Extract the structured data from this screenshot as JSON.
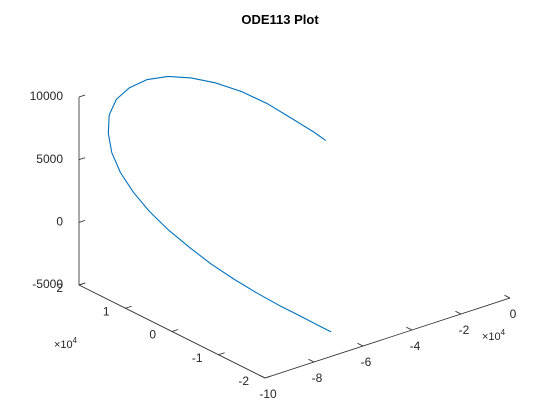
{
  "chart_data": {
    "type": "line",
    "projection": "3d",
    "title": "ODE113 Plot",
    "xlabel": "",
    "ylabel": "",
    "zlabel": "",
    "grid": false,
    "legend": "none",
    "series_color": "#0072BD",
    "axis_color": "#262626",
    "x_axis": {
      "ticks": [
        -10,
        -8,
        -6,
        -4,
        -2,
        0
      ],
      "tick_labels": [
        "-10",
        "-8",
        "-6",
        "-4",
        "-2",
        "0"
      ],
      "exponent_base": "×10",
      "exponent_power": "4",
      "xlim": [
        -10,
        0
      ]
    },
    "y_axis": {
      "ticks": [
        -2,
        -1,
        0,
        1,
        2
      ],
      "tick_labels": [
        "-2",
        "-1",
        "0",
        "1",
        "2"
      ],
      "exponent_base": "×10",
      "exponent_power": "4",
      "ylim": [
        -2,
        2
      ]
    },
    "z_axis": {
      "ticks": [
        -5000,
        0,
        5000,
        10000
      ],
      "tick_labels": [
        "-5000",
        "0",
        "5000",
        "10000"
      ],
      "zlim": [
        -5000,
        10000
      ]
    },
    "series": [
      {
        "x": [
          -5.05,
          -5.28,
          -5.7,
          -6.1,
          -6.6,
          -7.1,
          -7.55,
          -8.0,
          -8.45,
          -8.85,
          -9.2,
          -9.45,
          -9.6,
          -9.65,
          -9.6,
          -9.45,
          -9.25,
          -9.0,
          -8.7,
          -8.4,
          -8.05,
          -7.7,
          -7.35,
          -7.0,
          -6.7,
          -6.45
        ],
        "y": [
          -0.7,
          -0.56,
          -0.28,
          0.0,
          0.3,
          0.6,
          0.88,
          1.14,
          1.36,
          1.52,
          1.62,
          1.64,
          1.58,
          1.48,
          1.32,
          1.12,
          0.88,
          0.6,
          0.3,
          0.0,
          -0.3,
          -0.6,
          -0.9,
          -1.15,
          -1.38,
          -1.55
        ],
        "z": [
          8370,
          8940,
          9840,
          10680,
          11420,
          11880,
          12040,
          11960,
          11580,
          10900,
          10000,
          8880,
          7620,
          6300,
          4980,
          3680,
          2460,
          1340,
          300,
          -640,
          -1500,
          -2260,
          -2920,
          -3500,
          -4000,
          -4420
        ]
      }
    ]
  }
}
